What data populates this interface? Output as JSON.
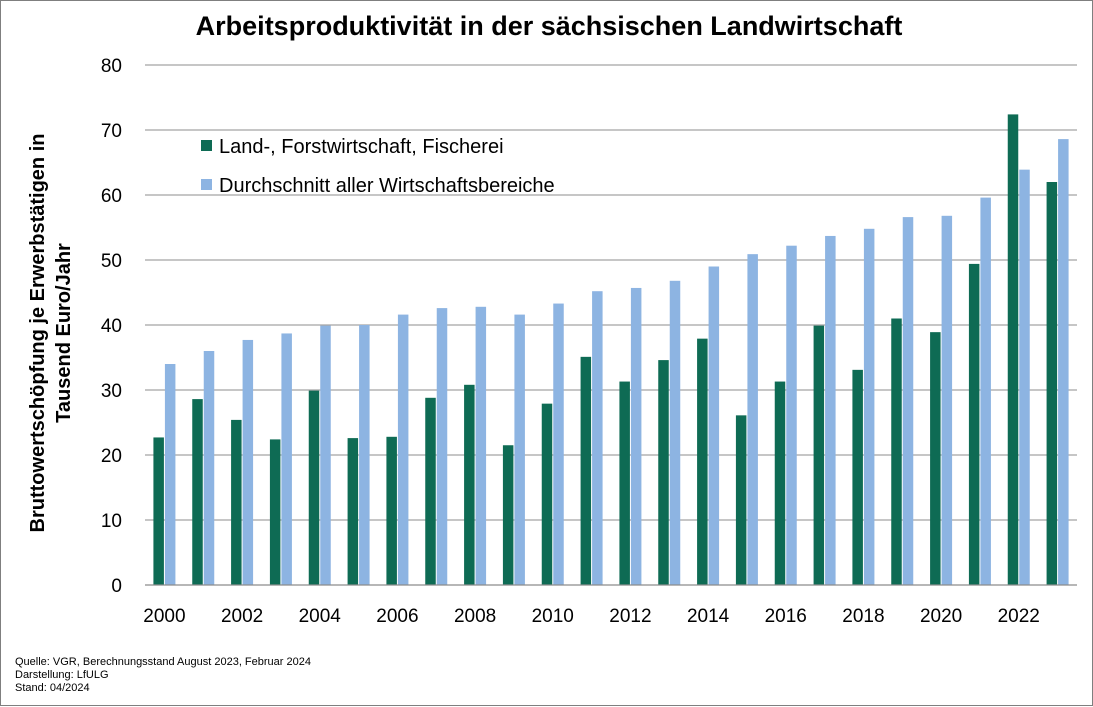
{
  "chart_data": {
    "type": "bar",
    "title": "Arbeitsproduktivität in der sächsischen Landwirtschaft",
    "ylabel_lines": [
      "Bruttowertschöpfung je Erwerbstätigen in",
      "Tausend Euro/Jahr"
    ],
    "xlabel": "",
    "ylim": [
      0,
      80
    ],
    "yticks": [
      "0",
      "10",
      "20",
      "30",
      "40",
      "50",
      "60",
      "70",
      "80"
    ],
    "categories": [
      "2000",
      "2001",
      "2002",
      "2003",
      "2004",
      "2005",
      "2006",
      "2007",
      "2008",
      "2009",
      "2010",
      "2011",
      "2012",
      "2013",
      "2014",
      "2015",
      "2016",
      "2017",
      "2018",
      "2019",
      "2020",
      "2021",
      "2022",
      "2023"
    ],
    "x_tick_labels": [
      "2000",
      "2002",
      "2004",
      "2006",
      "2008",
      "2010",
      "2012",
      "2014",
      "2016",
      "2018",
      "2020",
      "2022"
    ],
    "grid": "horizontal",
    "legend_position": "top-left",
    "series": [
      {
        "name": "Land-, Forstwirtschaft, Fischerei",
        "color": "#0e6b54",
        "values": [
          22.7,
          28.6,
          25.4,
          22.4,
          29.9,
          22.6,
          22.8,
          28.8,
          30.8,
          21.5,
          27.9,
          35.1,
          31.3,
          34.6,
          37.9,
          26.1,
          31.3,
          39.9,
          33.1,
          41.0,
          38.9,
          49.4,
          72.4,
          62.0
        ]
      },
      {
        "name": "Durchschnitt aller Wirtschaftsbereiche",
        "color": "#8db4e2",
        "values": [
          34.0,
          36.0,
          37.7,
          38.7,
          39.9,
          40.0,
          41.6,
          42.6,
          42.8,
          41.6,
          43.3,
          45.2,
          45.7,
          46.8,
          49.0,
          50.9,
          52.2,
          53.7,
          54.8,
          56.6,
          56.8,
          59.6,
          63.9,
          68.6
        ]
      }
    ]
  },
  "footer": {
    "line1": "Quelle: VGR,  Berechnungsstand August 2023, Februar 2024",
    "line2": "Darstellung: LfULG",
    "line3": "Stand: 04/2024"
  }
}
